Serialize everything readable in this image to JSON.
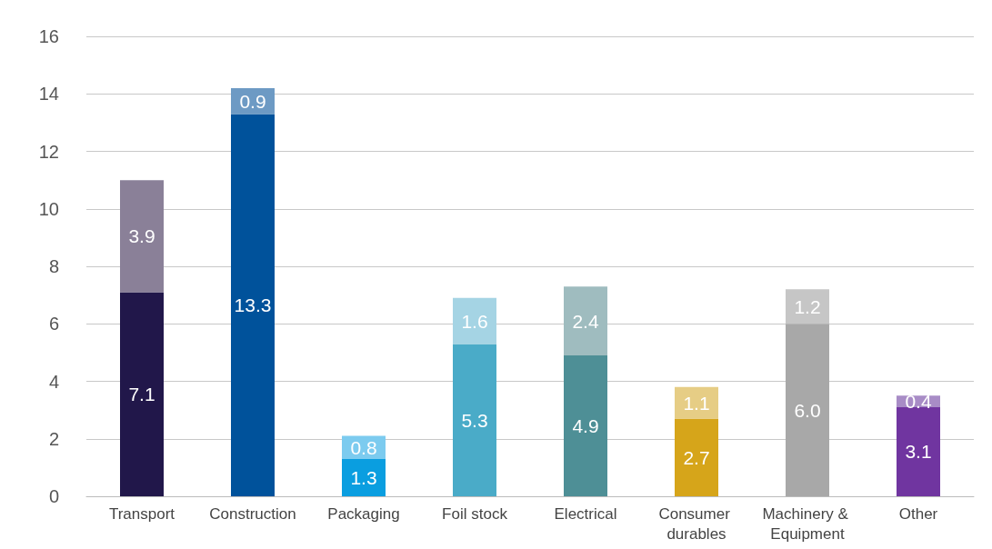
{
  "chart_data": {
    "type": "bar",
    "stacked": true,
    "categories": [
      "Transport",
      "Construction",
      "Packaging",
      "Foil stock",
      "Electrical",
      "Consumer durables",
      "Machinery & Equipment",
      "Other"
    ],
    "series": [
      {
        "colors": [
          "#21174a",
          "#00529b",
          "#0a9ee0",
          "#4aabc8",
          "#4e8f96",
          "#d6a51a",
          "#a8a8a8",
          "#7035a0"
        ],
        "values": [
          7.1,
          13.3,
          1.3,
          5.3,
          4.9,
          2.7,
          6.0,
          3.1
        ],
        "value_labels": [
          "7.1",
          "13.3",
          "1.3",
          "5.3",
          "4.9",
          "2.7",
          "6.0",
          "3.1"
        ]
      },
      {
        "colors": [
          "#8a8098",
          "#6d9ac4",
          "#7ccbef",
          "#a5d4e4",
          "#9fbcbf",
          "#e6cd85",
          "#c6c6c6",
          "#a88cc6"
        ],
        "values": [
          3.9,
          0.9,
          0.8,
          1.6,
          2.4,
          1.1,
          1.2,
          0.4
        ],
        "value_labels": [
          "3.9",
          "0.9",
          "0.8",
          "1.6",
          "2.4",
          "1.1",
          "1.2",
          "0.4"
        ]
      }
    ],
    "ylim": [
      0,
      16
    ],
    "yticks": [
      0,
      2,
      4,
      6,
      8,
      10,
      12,
      14,
      16
    ],
    "grid": "y"
  }
}
